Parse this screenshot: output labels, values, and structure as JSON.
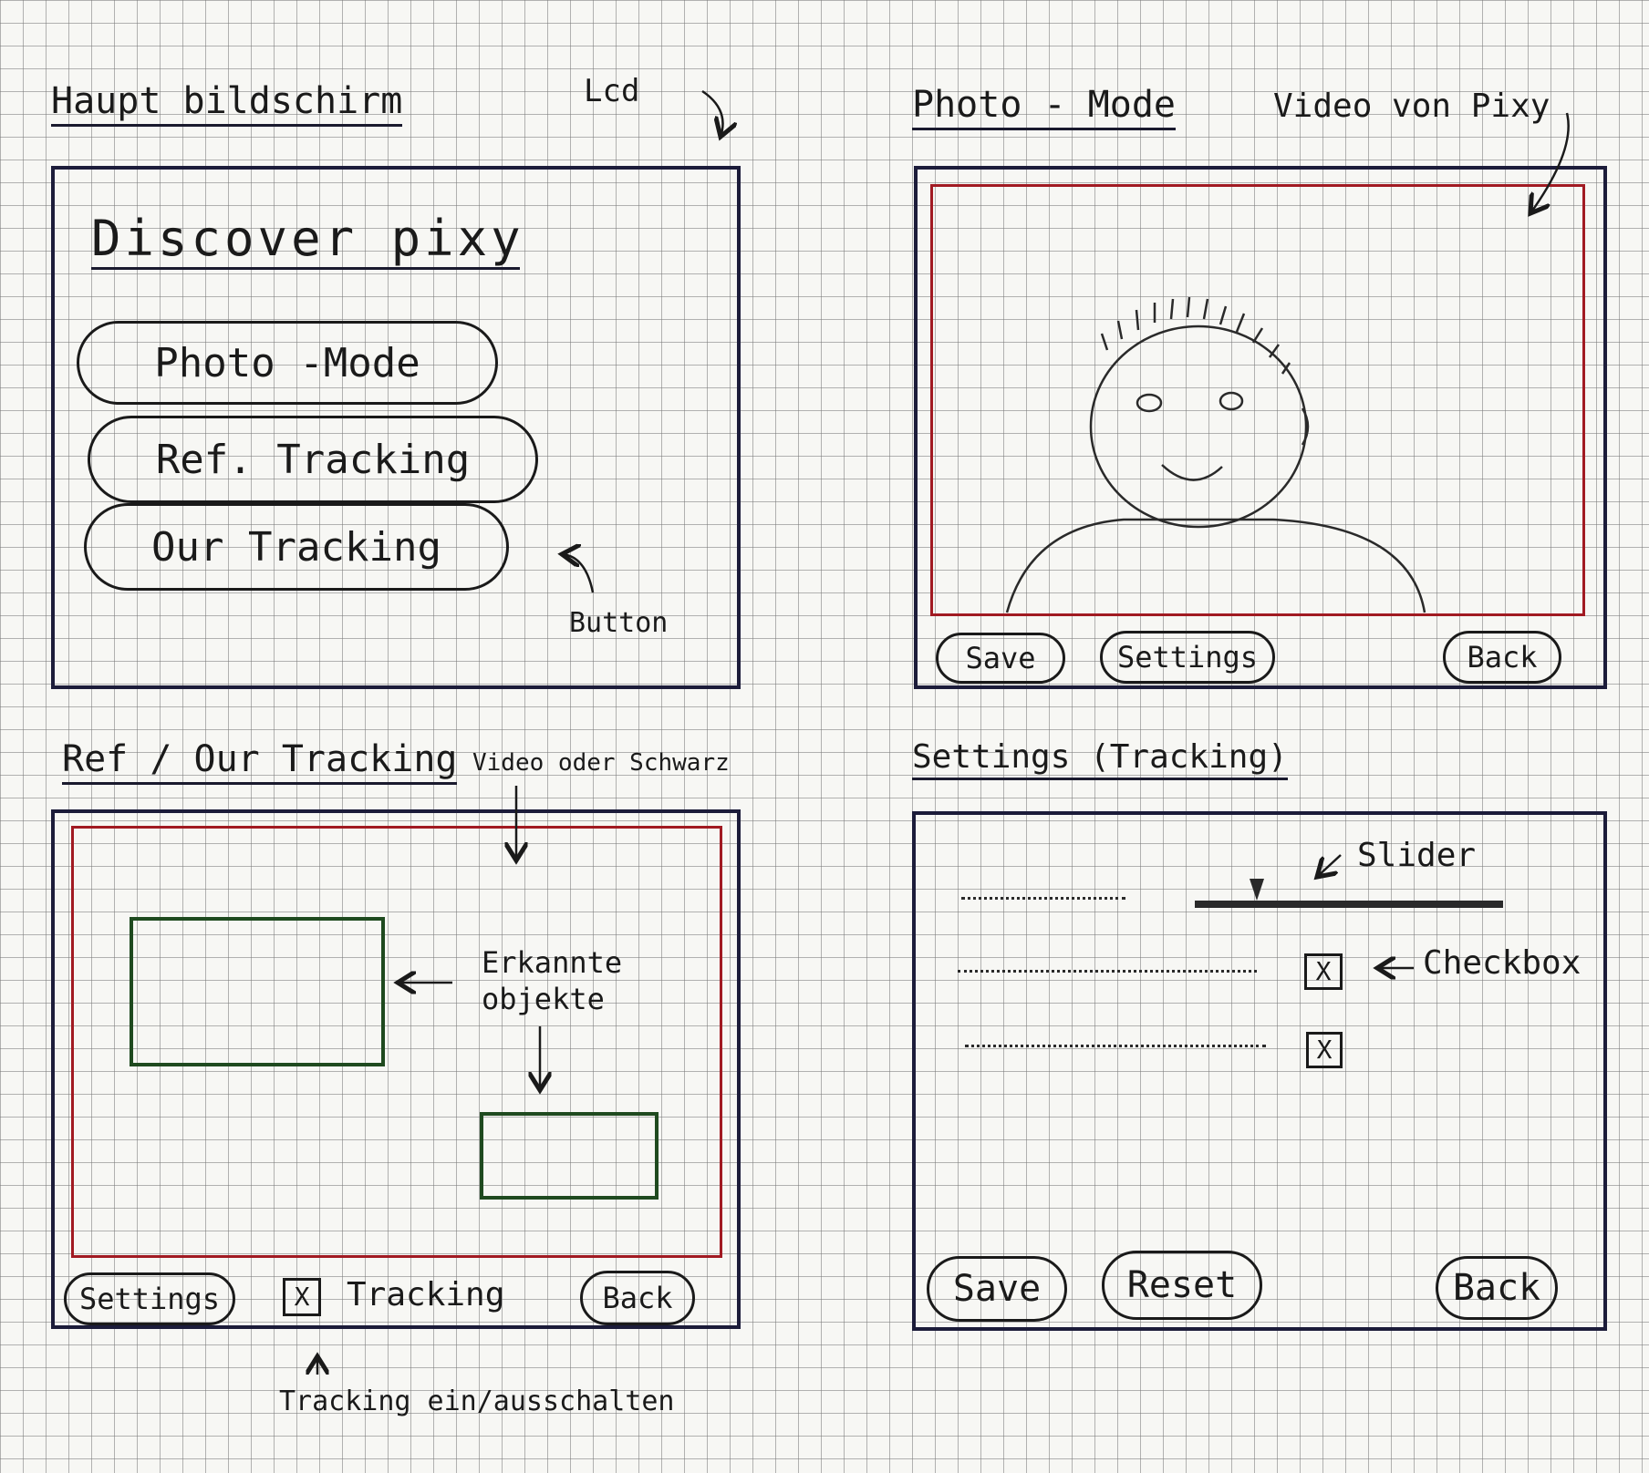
{
  "main_screen": {
    "heading": "Haupt bildschirm",
    "lcd_note": "Lcd",
    "title": "Discover pixy",
    "buttons": [
      "Photo -Mode",
      "Ref. Tracking",
      "Our Tracking"
    ],
    "button_note": "Button"
  },
  "photo_mode": {
    "heading": "Photo - Mode",
    "video_note": "Video von Pixy",
    "buttons": {
      "save": "Save",
      "settings": "Settings",
      "back": "Back"
    }
  },
  "tracking_screen": {
    "heading": "Ref / Our Tracking",
    "video_note": "Video oder Schwarz",
    "objects_note": "Erkannte objekte",
    "settings_button": "Settings",
    "tracking_checkbox": {
      "label": "Tracking",
      "mark": "X"
    },
    "back_button": "Back",
    "toggle_note": "Tracking ein/ausschalten"
  },
  "settings_tracking": {
    "heading": "Settings (Tracking)",
    "slider_note": "Slider",
    "checkbox_note": "Checkbox",
    "checkboxes": [
      {
        "mark": "X"
      },
      {
        "mark": "X"
      }
    ],
    "slider": {
      "value": 0.2
    },
    "buttons": {
      "save": "Save",
      "reset": "Reset",
      "back": "Back"
    }
  }
}
